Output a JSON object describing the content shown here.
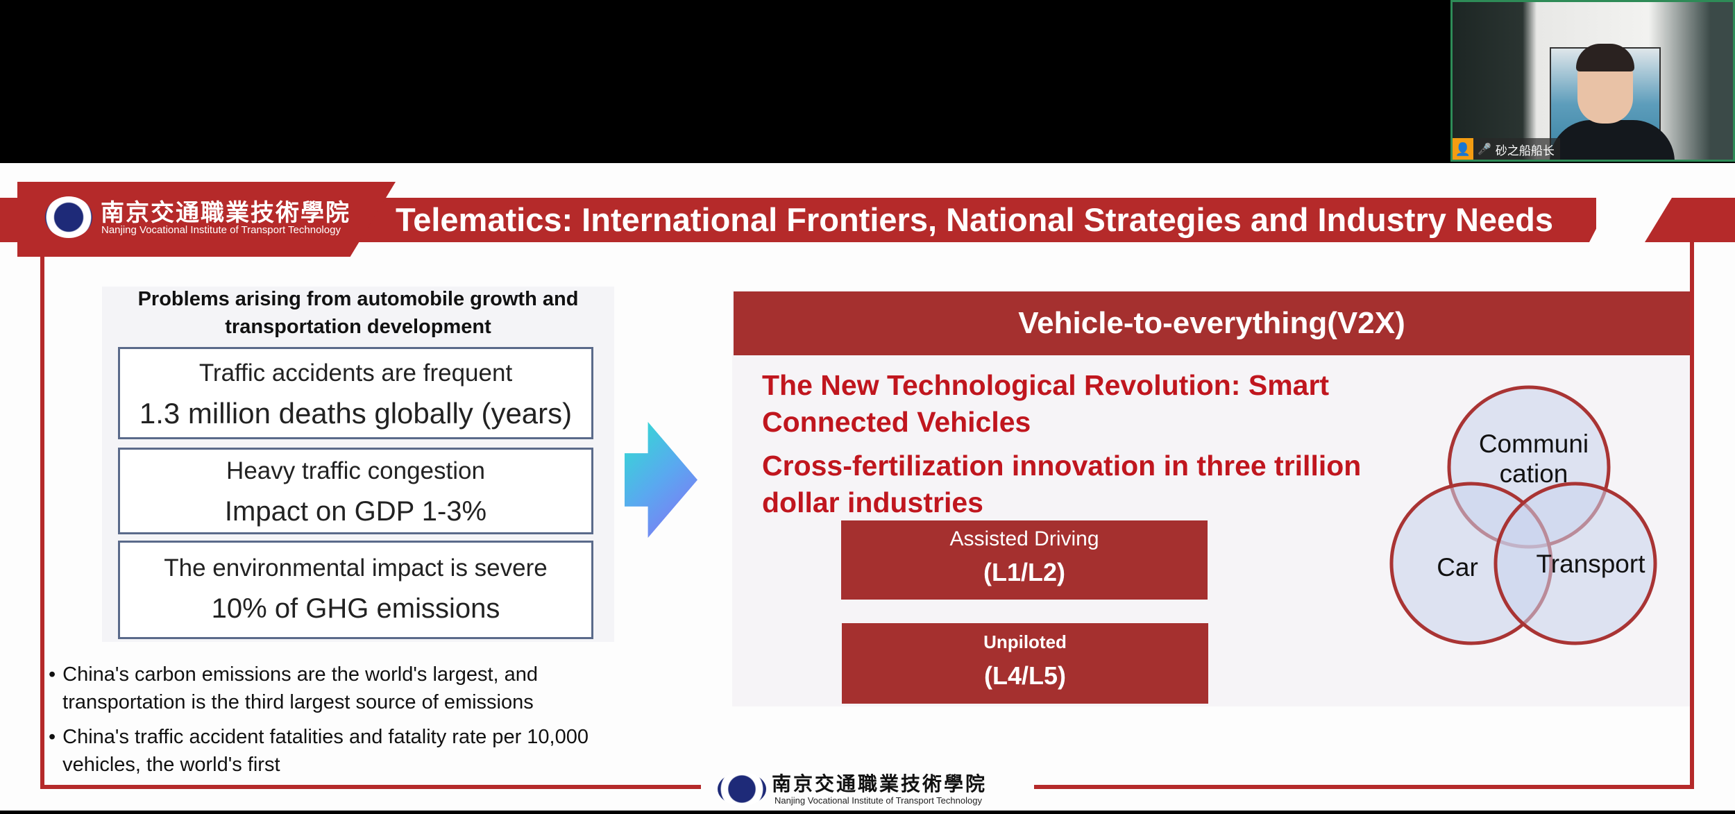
{
  "video": {
    "participant_name": "砂之船船长",
    "user_icon": "user-icon",
    "mic_icon": "microphone-icon"
  },
  "slide": {
    "institute_cn": "南京交通職業技術學院",
    "institute_en": "Nanjing Vocational Institute of Transport Technology",
    "title": "Telematics: International Frontiers, National Strategies and Industry Needs",
    "problems": {
      "heading_line1": "Problems arising from automobile growth and",
      "heading_line2": "transportation development",
      "boxes": [
        {
          "line1": "Traffic accidents are frequent",
          "line2": "1.3 million deaths globally (years)"
        },
        {
          "line1": "Heavy traffic congestion",
          "line2": "Impact on GDP 1-3%"
        },
        {
          "line1": "The environmental impact is severe",
          "line2": "10% of GHG emissions"
        }
      ]
    },
    "bullets": [
      {
        "line1": "China's carbon emissions are the world's largest, and",
        "line2": "transportation is the third largest source of emissions"
      },
      {
        "line1": "China's traffic accident fatalities and fatality rate per 10,000",
        "line2": "vehicles, the world's first"
      }
    ],
    "v2x": {
      "header": "Vehicle-to-everything(V2X)",
      "line1": "The New Technological Revolution: Smart",
      "line2": "Connected Vehicles",
      "line3": "Cross-fertilization innovation in three trillion",
      "line4": "dollar industries",
      "levels": [
        {
          "name": "Assisted Driving",
          "level": "(L1/L2)"
        },
        {
          "name": "Unpiloted",
          "level": "(L4/L5)"
        }
      ],
      "venn": {
        "top_line1": "Communi",
        "top_line2": "cation",
        "left": "Car",
        "right": "Transport"
      }
    },
    "colors": {
      "brand_red": "#b52a2a",
      "text_red": "#c0161e",
      "venn_fill": "#dde3f0"
    }
  }
}
